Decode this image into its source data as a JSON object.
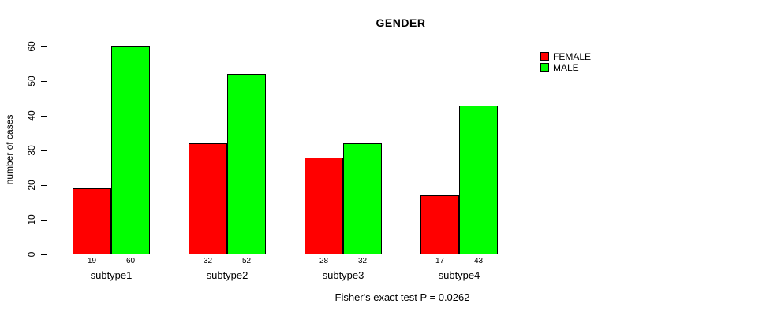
{
  "title": "GENDER",
  "caption": "Fisher's exact test P = 0.0262",
  "colors": {
    "female": "#ff0000",
    "male": "#00ff00",
    "axis": "#000000",
    "background": "#ffffff"
  },
  "chart_data": {
    "type": "bar",
    "title": "GENDER",
    "xlabel": "",
    "ylabel": "number of cases",
    "categories": [
      "subtype1",
      "subtype2",
      "subtype3",
      "subtype4"
    ],
    "series": [
      {
        "name": "FEMALE",
        "color": "#ff0000",
        "values": [
          19,
          32,
          28,
          17
        ]
      },
      {
        "name": "MALE",
        "color": "#00ff00",
        "values": [
          60,
          52,
          32,
          43
        ]
      }
    ],
    "bar_value_labels": [
      [
        "19",
        "60"
      ],
      [
        "32",
        "52"
      ],
      [
        "28",
        "32"
      ],
      [
        "17",
        "43"
      ]
    ],
    "ylim": [
      0,
      60
    ],
    "yticks": [
      0,
      10,
      20,
      30,
      40,
      50,
      60
    ],
    "grid": false,
    "legend_position": "top-right",
    "annotation": "Fisher's exact test P = 0.0262"
  }
}
